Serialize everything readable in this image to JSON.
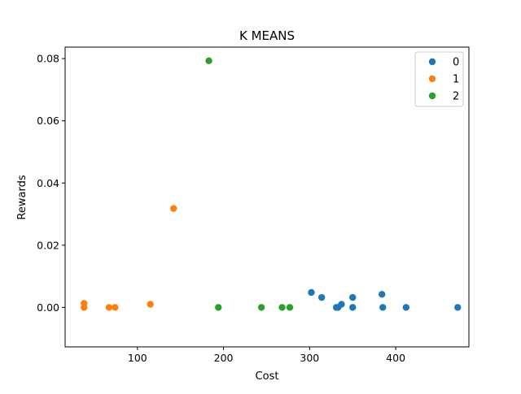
{
  "chart_data": {
    "type": "scatter",
    "title": "K MEANS",
    "xlabel": "Cost",
    "ylabel": "Rewards",
    "xlim": [
      16,
      485
    ],
    "ylim": [
      -0.0127,
      0.0837
    ],
    "xticks": [
      100,
      200,
      300,
      400
    ],
    "xtick_labels": [
      "100",
      "200",
      "300",
      "400"
    ],
    "yticks": [
      0.0,
      0.02,
      0.04,
      0.06,
      0.08
    ],
    "ytick_labels": [
      "0.00",
      "0.02",
      "0.04",
      "0.06",
      "0.08"
    ],
    "grid": false,
    "legend_position": "top-right",
    "series": [
      {
        "name": "0",
        "color": "#1f77b4",
        "points": [
          {
            "x": 302,
            "y": 0.0048
          },
          {
            "x": 314,
            "y": 0.0032
          },
          {
            "x": 331,
            "y": 0.0
          },
          {
            "x": 333,
            "y": 0.0
          },
          {
            "x": 337,
            "y": 0.001
          },
          {
            "x": 350,
            "y": 0.0032
          },
          {
            "x": 350,
            "y": 0.0
          },
          {
            "x": 384,
            "y": 0.0042
          },
          {
            "x": 385,
            "y": 0.0
          },
          {
            "x": 412,
            "y": 0.0
          },
          {
            "x": 472,
            "y": 0.0
          }
        ]
      },
      {
        "name": "1",
        "color": "#ff7f0e",
        "points": [
          {
            "x": 38,
            "y": 0.0013
          },
          {
            "x": 38,
            "y": 0.0
          },
          {
            "x": 67,
            "y": 0.0
          },
          {
            "x": 74,
            "y": 0.0
          },
          {
            "x": 115,
            "y": 0.001
          },
          {
            "x": 142,
            "y": 0.0318
          }
        ]
      },
      {
        "name": "2",
        "color": "#2ca02c",
        "points": [
          {
            "x": 183,
            "y": 0.0793
          },
          {
            "x": 194,
            "y": 0.0
          },
          {
            "x": 244,
            "y": 0.0
          },
          {
            "x": 268,
            "y": 0.0
          },
          {
            "x": 277,
            "y": 0.0
          }
        ]
      }
    ]
  }
}
